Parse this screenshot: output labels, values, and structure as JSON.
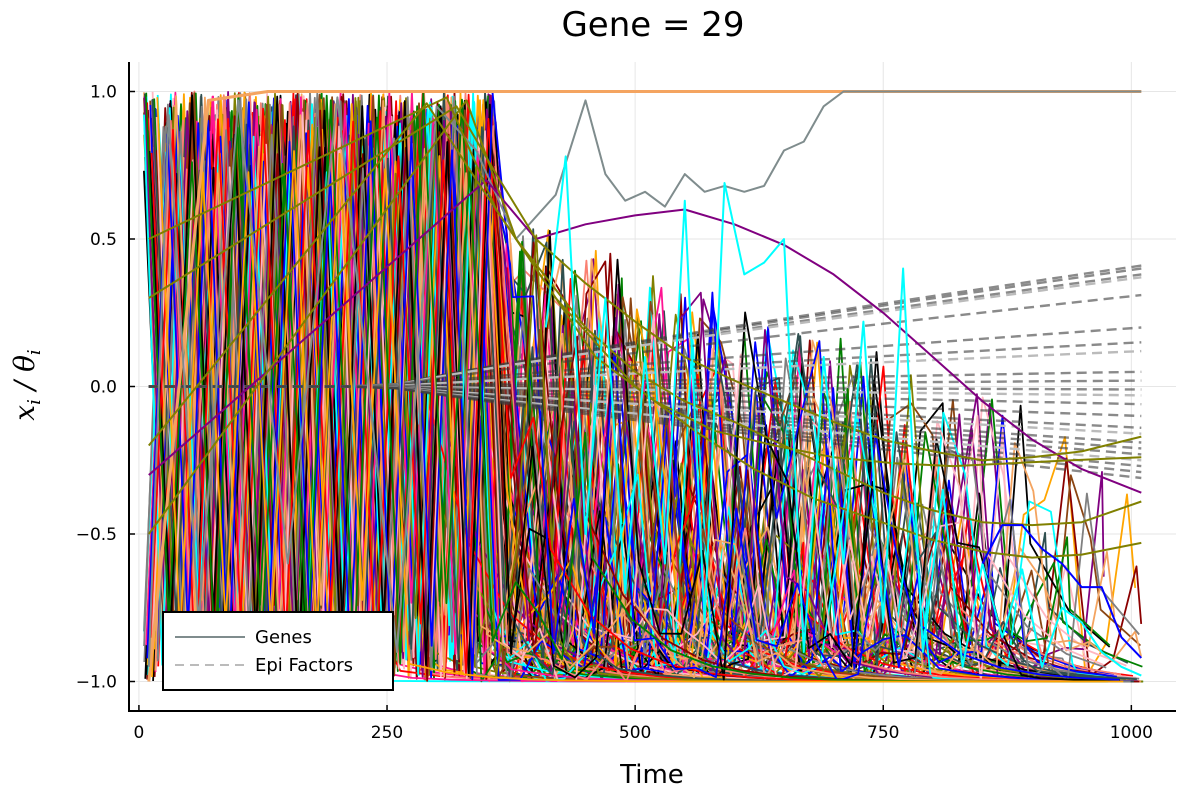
{
  "chart_data": {
    "type": "line",
    "title": "Gene = 29",
    "xlabel": "Time",
    "ylabel": {
      "main": "x",
      "sub1": "i",
      "sep": " / θ",
      "sub2": "i"
    },
    "xlim": [
      -10,
      1045
    ],
    "ylim": [
      -1.1,
      1.1
    ],
    "xticks": [
      0,
      250,
      500,
      750,
      1000
    ],
    "xtick_labels": [
      "0",
      "250",
      "500",
      "750",
      "1000"
    ],
    "yticks": [
      -1.0,
      -0.5,
      0.0,
      0.5,
      1.0
    ],
    "ytick_labels": [
      "−1.0",
      "−0.5",
      "0.0",
      "0.5",
      "1.0"
    ],
    "grid": true,
    "legend_position": "bottom-left",
    "legend": [
      {
        "label": "Genes",
        "style": "solid",
        "color": "#7f8c8d"
      },
      {
        "label": "Epi Factors",
        "style": "dashed",
        "color": "#bbbbbb"
      }
    ],
    "gene_palette": [
      "#808080",
      "#000000",
      "#ff0000",
      "#0000ff",
      "#008000",
      "#ffa500",
      "#800080",
      "#00ffff",
      "#ff1493",
      "#8b4513",
      "#808000",
      "#fa8072",
      "#ffb6c1",
      "#8b0000",
      "#2f4f4f",
      "#f4a460"
    ],
    "series": [
      {
        "role": "gene",
        "color": "#f4a460",
        "width": 3,
        "x": [
          10,
          70,
          130,
          150,
          400,
          700,
          1010
        ],
        "y": [
          -1.0,
          0.97,
          1.0,
          1.0,
          1.0,
          1.0,
          1.0
        ]
      },
      {
        "role": "gene",
        "color": "#7f8c8d",
        "width": 2,
        "x": [
          10,
          30,
          60,
          100,
          150,
          200,
          260,
          300,
          340,
          380,
          420,
          450,
          470,
          490,
          510,
          530,
          550,
          570,
          590,
          610,
          630,
          650,
          670,
          690,
          710,
          1010
        ],
        "y": [
          -0.95,
          0.92,
          -0.8,
          0.97,
          -0.6,
          0.98,
          -0.9,
          0.95,
          0.8,
          0.5,
          0.65,
          0.97,
          0.72,
          0.63,
          0.66,
          0.61,
          0.72,
          0.66,
          0.68,
          0.66,
          0.68,
          0.8,
          0.83,
          0.95,
          1.0,
          1.0
        ]
      },
      {
        "role": "gene",
        "color": "#800080",
        "width": 2,
        "x": [
          10,
          350,
          400,
          450,
          500,
          550,
          600,
          650,
          700,
          750,
          800,
          850,
          900,
          950,
          1010
        ],
        "y": [
          -0.3,
          0.7,
          0.5,
          0.55,
          0.58,
          0.6,
          0.55,
          0.48,
          0.38,
          0.25,
          0.1,
          -0.05,
          -0.18,
          -0.28,
          -0.36
        ]
      },
      {
        "role": "gene",
        "color": "#808000",
        "width": 2,
        "x": [
          10,
          320,
          360,
          400,
          450,
          500,
          550,
          600,
          650,
          700,
          750,
          800,
          850,
          900,
          950,
          1010
        ],
        "y": [
          0.3,
          0.95,
          0.72,
          0.5,
          0.35,
          0.22,
          0.1,
          0.02,
          -0.05,
          -0.12,
          -0.18,
          -0.22,
          -0.25,
          -0.24,
          -0.22,
          -0.17
        ]
      },
      {
        "role": "gene",
        "color": "#808000",
        "width": 2,
        "x": [
          10,
          330,
          380,
          450,
          500,
          550,
          600,
          650,
          700,
          750,
          800,
          850,
          900,
          950,
          1010
        ],
        "y": [
          -0.5,
          0.97,
          0.5,
          0.2,
          0.05,
          -0.05,
          -0.12,
          -0.2,
          -0.28,
          -0.36,
          -0.42,
          -0.46,
          -0.47,
          -0.46,
          -0.39
        ]
      },
      {
        "role": "gene",
        "color": "#808000",
        "width": 2,
        "x": [
          10,
          310,
          360,
          420,
          500,
          560,
          620,
          680,
          740,
          800,
          850,
          900,
          950,
          1010
        ],
        "y": [
          0.5,
          0.98,
          0.6,
          0.3,
          0.0,
          -0.15,
          -0.28,
          -0.38,
          -0.45,
          -0.52,
          -0.56,
          -0.58,
          -0.57,
          -0.53
        ]
      },
      {
        "role": "gene",
        "color": "#808000",
        "width": 2,
        "x": [
          10,
          290,
          340,
          400,
          460,
          520,
          580,
          640,
          700,
          760,
          820,
          880,
          940,
          1010
        ],
        "y": [
          -0.2,
          0.96,
          0.7,
          0.4,
          0.1,
          -0.05,
          -0.15,
          -0.2,
          -0.24,
          -0.26,
          -0.27,
          -0.26,
          -0.25,
          -0.24
        ]
      },
      {
        "role": "gene",
        "color": "#00ffff",
        "width": 2,
        "x": [
          410,
          430,
          450,
          470,
          490,
          510,
          530,
          550,
          570,
          590,
          610,
          630,
          650,
          670,
          690,
          710,
          730,
          750,
          770,
          790,
          810,
          830,
          850,
          870,
          890,
          910,
          930,
          950,
          970,
          990,
          1010
        ],
        "y": [
          0.2,
          0.78,
          -0.5,
          0.3,
          -0.7,
          0.1,
          -0.6,
          0.63,
          -0.8,
          0.69,
          0.38,
          0.42,
          0.5,
          -0.9,
          0.1,
          -0.6,
          0.22,
          -0.8,
          0.4,
          -0.9,
          -0.35,
          -0.95,
          -0.6,
          -0.85,
          -0.62,
          -0.95,
          -0.75,
          -0.8,
          -0.9,
          -0.95,
          -0.98
        ]
      },
      {
        "role": "gene",
        "color": "#0000ff",
        "width": 2,
        "x": [
          850,
          870,
          890,
          910,
          930,
          950,
          970,
          990,
          1010
        ],
        "y": [
          -0.6,
          -0.47,
          -0.47,
          -0.55,
          -0.6,
          -0.68,
          -0.68,
          -0.85,
          -0.92
        ]
      }
    ]
  }
}
